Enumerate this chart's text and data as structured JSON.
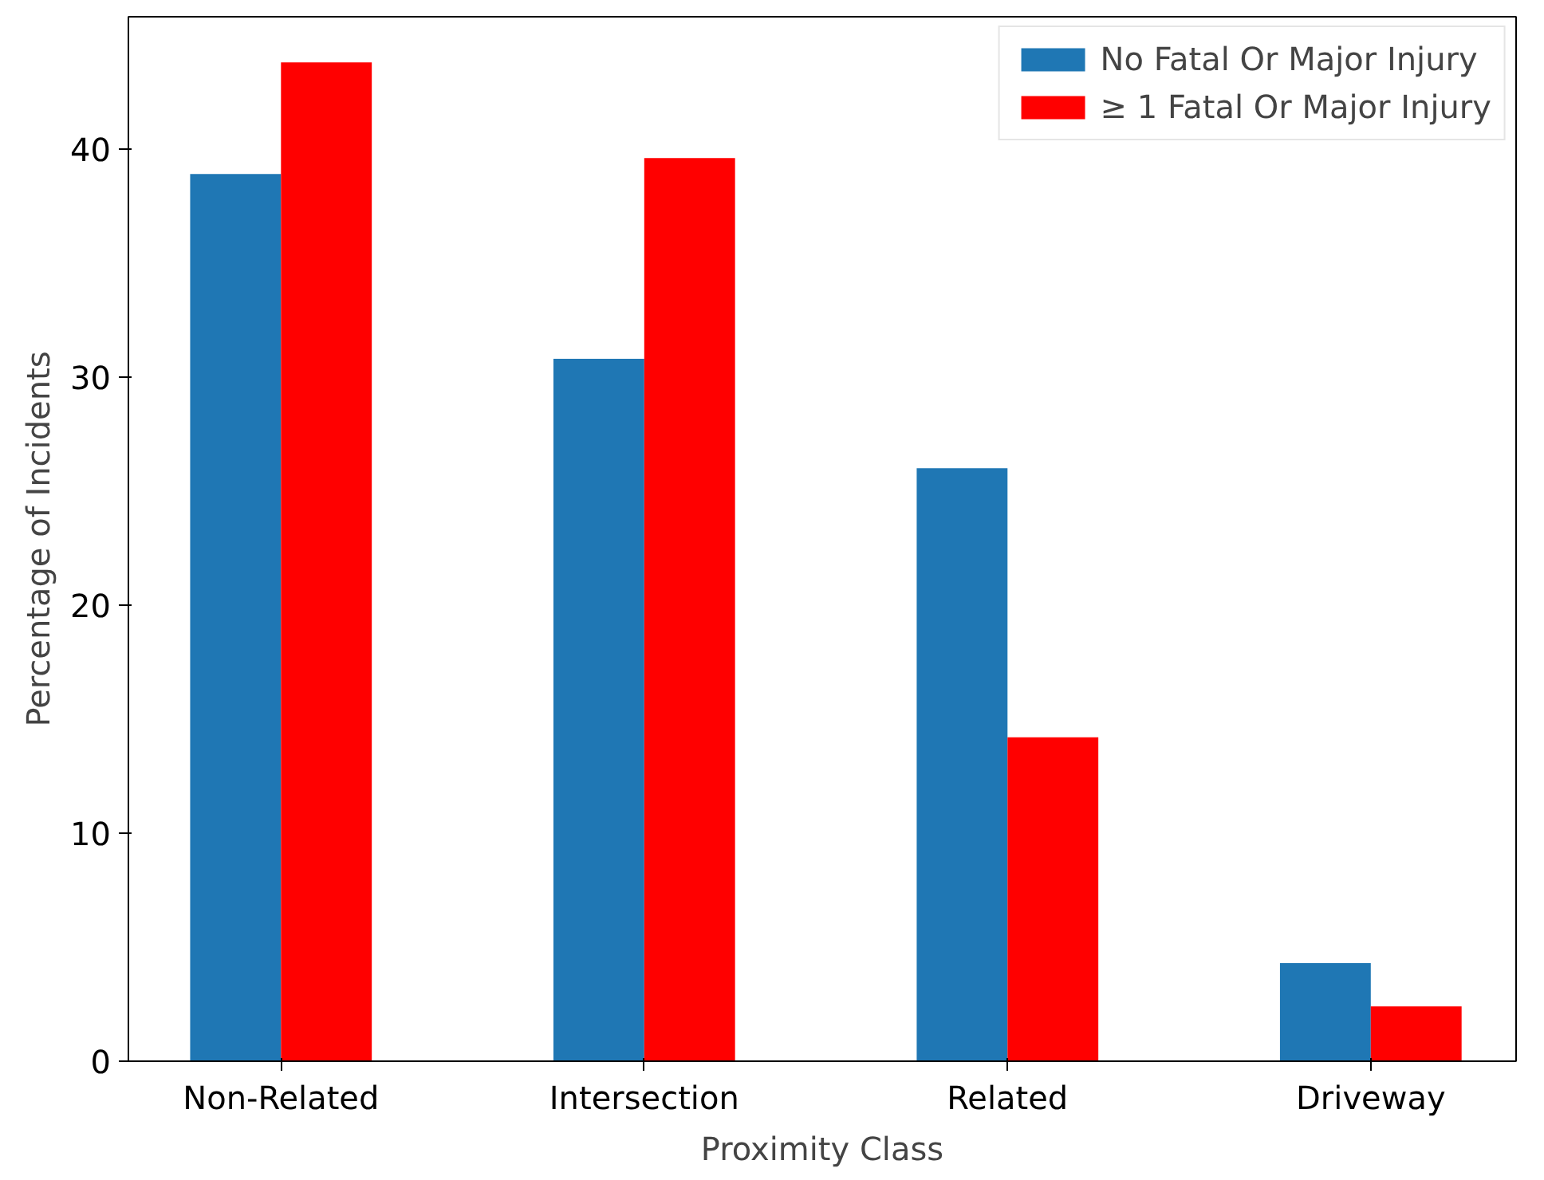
{
  "chart_data": {
    "type": "bar",
    "xlabel": "Proximity Class",
    "ylabel": "Percentage of Incidents",
    "categories": [
      "Non-Related",
      "Intersection",
      "Related",
      "Driveway"
    ],
    "series": [
      {
        "name": "No Fatal Or Major Injury",
        "color": "#1f77b4",
        "values": [
          38.9,
          30.8,
          26.0,
          4.3
        ]
      },
      {
        "name": "≥ 1 Fatal Or Major Injury",
        "color": "#ff0000",
        "values": [
          43.8,
          39.6,
          14.2,
          2.4
        ]
      }
    ],
    "ylim": [
      0,
      45.8
    ],
    "yticks": [
      0,
      10,
      20,
      30,
      40
    ],
    "grid": false,
    "legend": "top right"
  }
}
